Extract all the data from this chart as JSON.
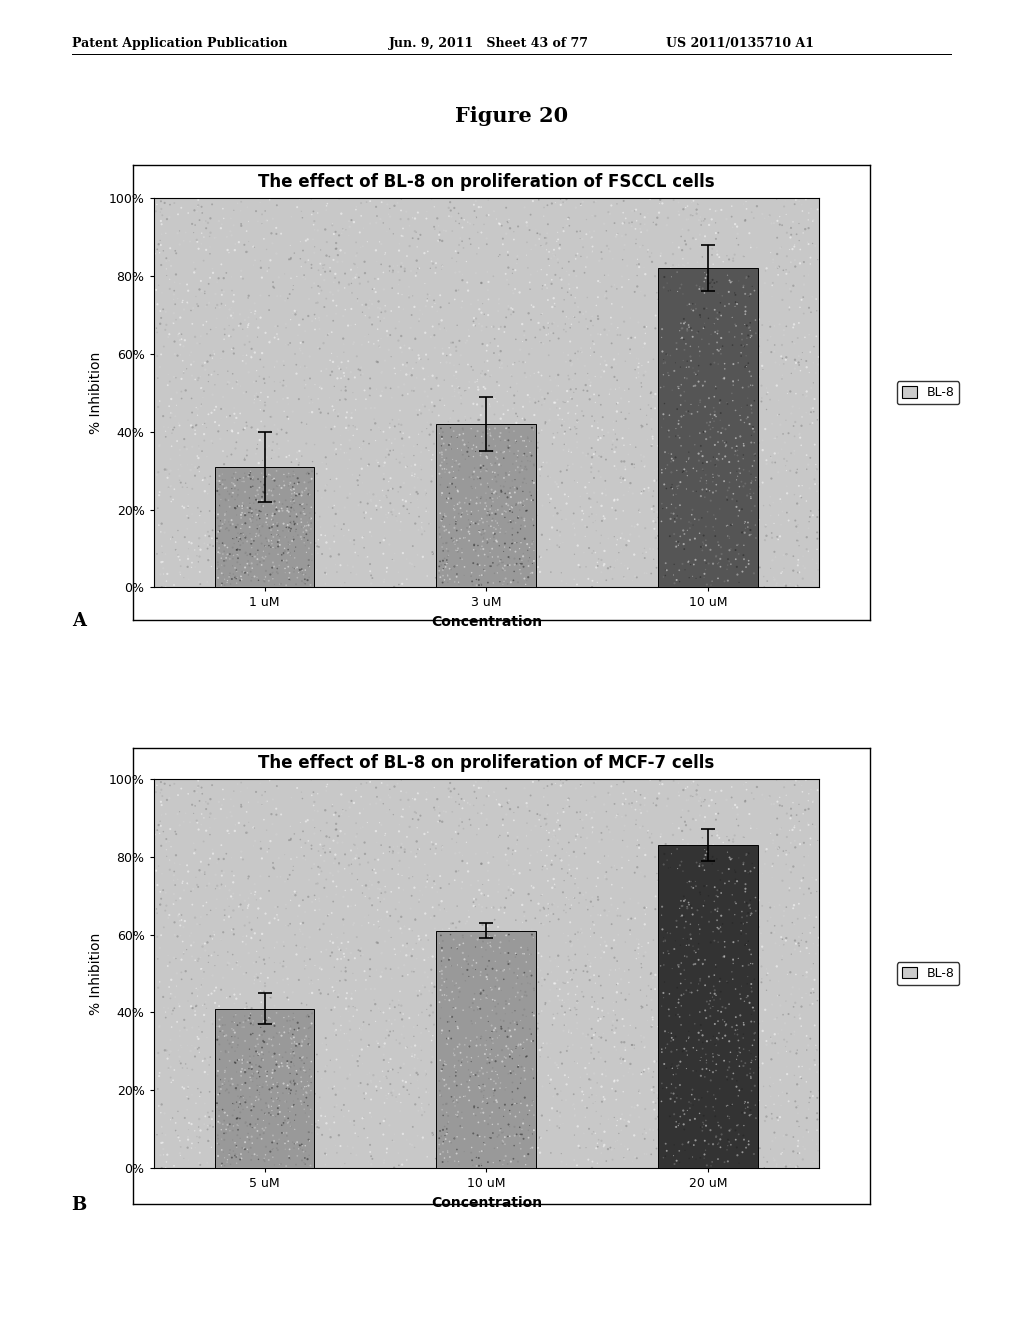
{
  "page_header_left": "Patent Application Publication",
  "page_header_mid": "Jun. 9, 2011   Sheet 43 of 77",
  "page_header_right": "US 2011/0135710 A1",
  "figure_title": "Figure 20",
  "chart_a": {
    "title": "The effect of BL-8 on proliferation of FSCCL cells",
    "categories": [
      "1 uM",
      "3 uM",
      "10 uM"
    ],
    "values": [
      0.31,
      0.42,
      0.82
    ],
    "errors": [
      0.09,
      0.07,
      0.06
    ],
    "ylabel": "% Inhibition",
    "xlabel": "Concentration",
    "yticks": [
      0,
      0.2,
      0.4,
      0.6,
      0.8,
      1.0
    ],
    "yticklabels": [
      "0%",
      "20%",
      "40%",
      "60%",
      "80%",
      "100%"
    ],
    "legend_label": "BL-8",
    "label": "A"
  },
  "chart_b": {
    "title": "The effect of BL-8 on proliferation of MCF-7 cells",
    "categories": [
      "5 uM",
      "10 uM",
      "20 uM"
    ],
    "values": [
      0.41,
      0.61,
      0.83
    ],
    "errors": [
      0.04,
      0.02,
      0.04
    ],
    "ylabel": "% Inhibition",
    "xlabel": "Concentration",
    "yticks": [
      0,
      0.2,
      0.4,
      0.6,
      0.8,
      1.0
    ],
    "yticklabels": [
      "0%",
      "20%",
      "40%",
      "60%",
      "80%",
      "100%"
    ],
    "legend_label": "BL-8",
    "label": "B"
  },
  "bar_colors_a": [
    "#999999",
    "#999999",
    "#555555"
  ],
  "bar_colors_b": [
    "#999999",
    "#999999",
    "#333333"
  ],
  "background_color": "#ffffff",
  "plot_bg_color": "#c8c8c8",
  "title_fontsize": 12,
  "axis_label_fontsize": 10,
  "tick_fontsize": 9,
  "header_fontsize": 9,
  "figure_title_fontsize": 15
}
